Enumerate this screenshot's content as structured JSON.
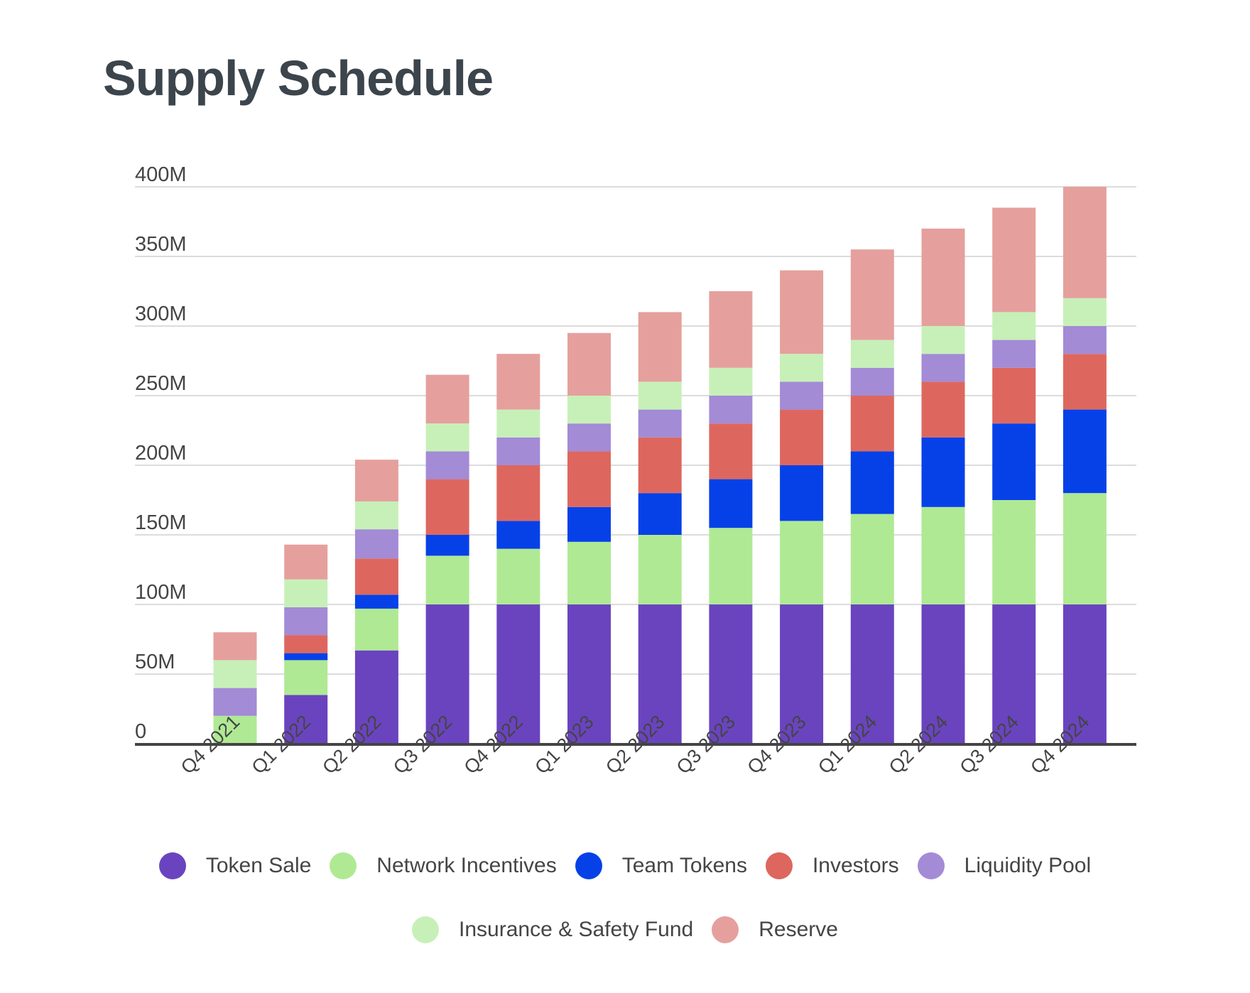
{
  "chart_data": {
    "type": "bar",
    "stacked": true,
    "title": "Supply Schedule",
    "xlabel": "",
    "ylabel": "",
    "ylim": [
      0,
      400
    ],
    "y_unit": "M",
    "yticks": [
      "0",
      "50M",
      "100M",
      "150M",
      "200M",
      "250M",
      "300M",
      "350M",
      "400M"
    ],
    "grid": true,
    "legend_placement": "bottom",
    "categories": [
      "Q4 2021",
      "Q1 2022",
      "Q2 2022",
      "Q3 2022",
      "Q4 2022",
      "Q1 2023",
      "Q2 2023",
      "Q3 2023",
      "Q4 2023",
      "Q1 2024",
      "Q2 2024",
      "Q3 2024",
      "Q4 2024"
    ],
    "series": [
      {
        "name": "Token Sale",
        "color": "#6a44bf",
        "values": [
          0,
          35,
          67,
          100,
          100,
          100,
          100,
          100,
          100,
          100,
          100,
          100,
          100
        ]
      },
      {
        "name": "Network Incentives",
        "color": "#b0e994",
        "values": [
          20,
          25,
          30,
          35,
          40,
          45,
          50,
          55,
          60,
          65,
          70,
          75,
          80
        ]
      },
      {
        "name": "Team Tokens",
        "color": "#0641e8",
        "values": [
          0,
          5,
          10,
          15,
          20,
          25,
          30,
          35,
          40,
          45,
          50,
          55,
          60
        ]
      },
      {
        "name": "Investors",
        "color": "#dd675f",
        "values": [
          0,
          13,
          26,
          40,
          40,
          40,
          40,
          40,
          40,
          40,
          40,
          40,
          40
        ]
      },
      {
        "name": "Liquidity Pool",
        "color": "#a38bd6",
        "values": [
          20,
          20,
          21,
          20,
          20,
          20,
          20,
          20,
          20,
          20,
          20,
          20,
          20
        ]
      },
      {
        "name": "Insurance & Safety Fund",
        "color": "#c7f0b8",
        "values": [
          20,
          20,
          20,
          20,
          20,
          20,
          20,
          20,
          20,
          20,
          20,
          20,
          20
        ]
      },
      {
        "name": "Reserve",
        "color": "#e5a09d",
        "values": [
          20,
          25,
          30,
          35,
          40,
          45,
          50,
          55,
          60,
          65,
          70,
          75,
          80
        ]
      }
    ]
  }
}
